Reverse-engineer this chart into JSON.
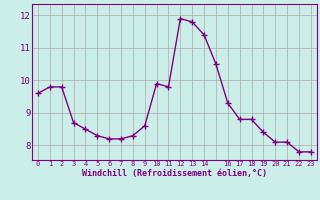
{
  "x": [
    0,
    1,
    2,
    3,
    4,
    5,
    6,
    7,
    8,
    9,
    10,
    11,
    12,
    13,
    14,
    15,
    16,
    17,
    18,
    19,
    20,
    21,
    22,
    23
  ],
  "y": [
    9.6,
    9.8,
    9.8,
    8.7,
    8.5,
    8.3,
    8.2,
    8.2,
    8.3,
    8.6,
    9.9,
    9.8,
    11.9,
    11.8,
    11.4,
    10.5,
    9.3,
    8.8,
    8.8,
    8.4,
    8.1,
    8.1,
    7.8,
    7.8
  ],
  "line_color": "#800080",
  "marker": "+",
  "markersize": 4,
  "linewidth": 1.0,
  "bg_color": "#cceee8",
  "grid_color": "#aaaaaa",
  "xlabel": "Windchill (Refroidissement éolien,°C)",
  "xlabel_color": "#800080",
  "tick_color": "#800080",
  "ylabel_ticks": [
    8,
    9,
    10,
    11,
    12
  ],
  "xlim": [
    -0.5,
    23.5
  ],
  "ylim": [
    7.55,
    12.35
  ],
  "xtick_labels": [
    "0",
    "1",
    "2",
    "3",
    "4",
    "5",
    "6",
    "7",
    "8",
    "9",
    "10",
    "11",
    "12",
    "13",
    "14",
    "",
    "16",
    "17",
    "18",
    "19",
    "20",
    "21",
    "22",
    "23"
  ],
  "font_family": "monospace",
  "title_color": "#800080"
}
